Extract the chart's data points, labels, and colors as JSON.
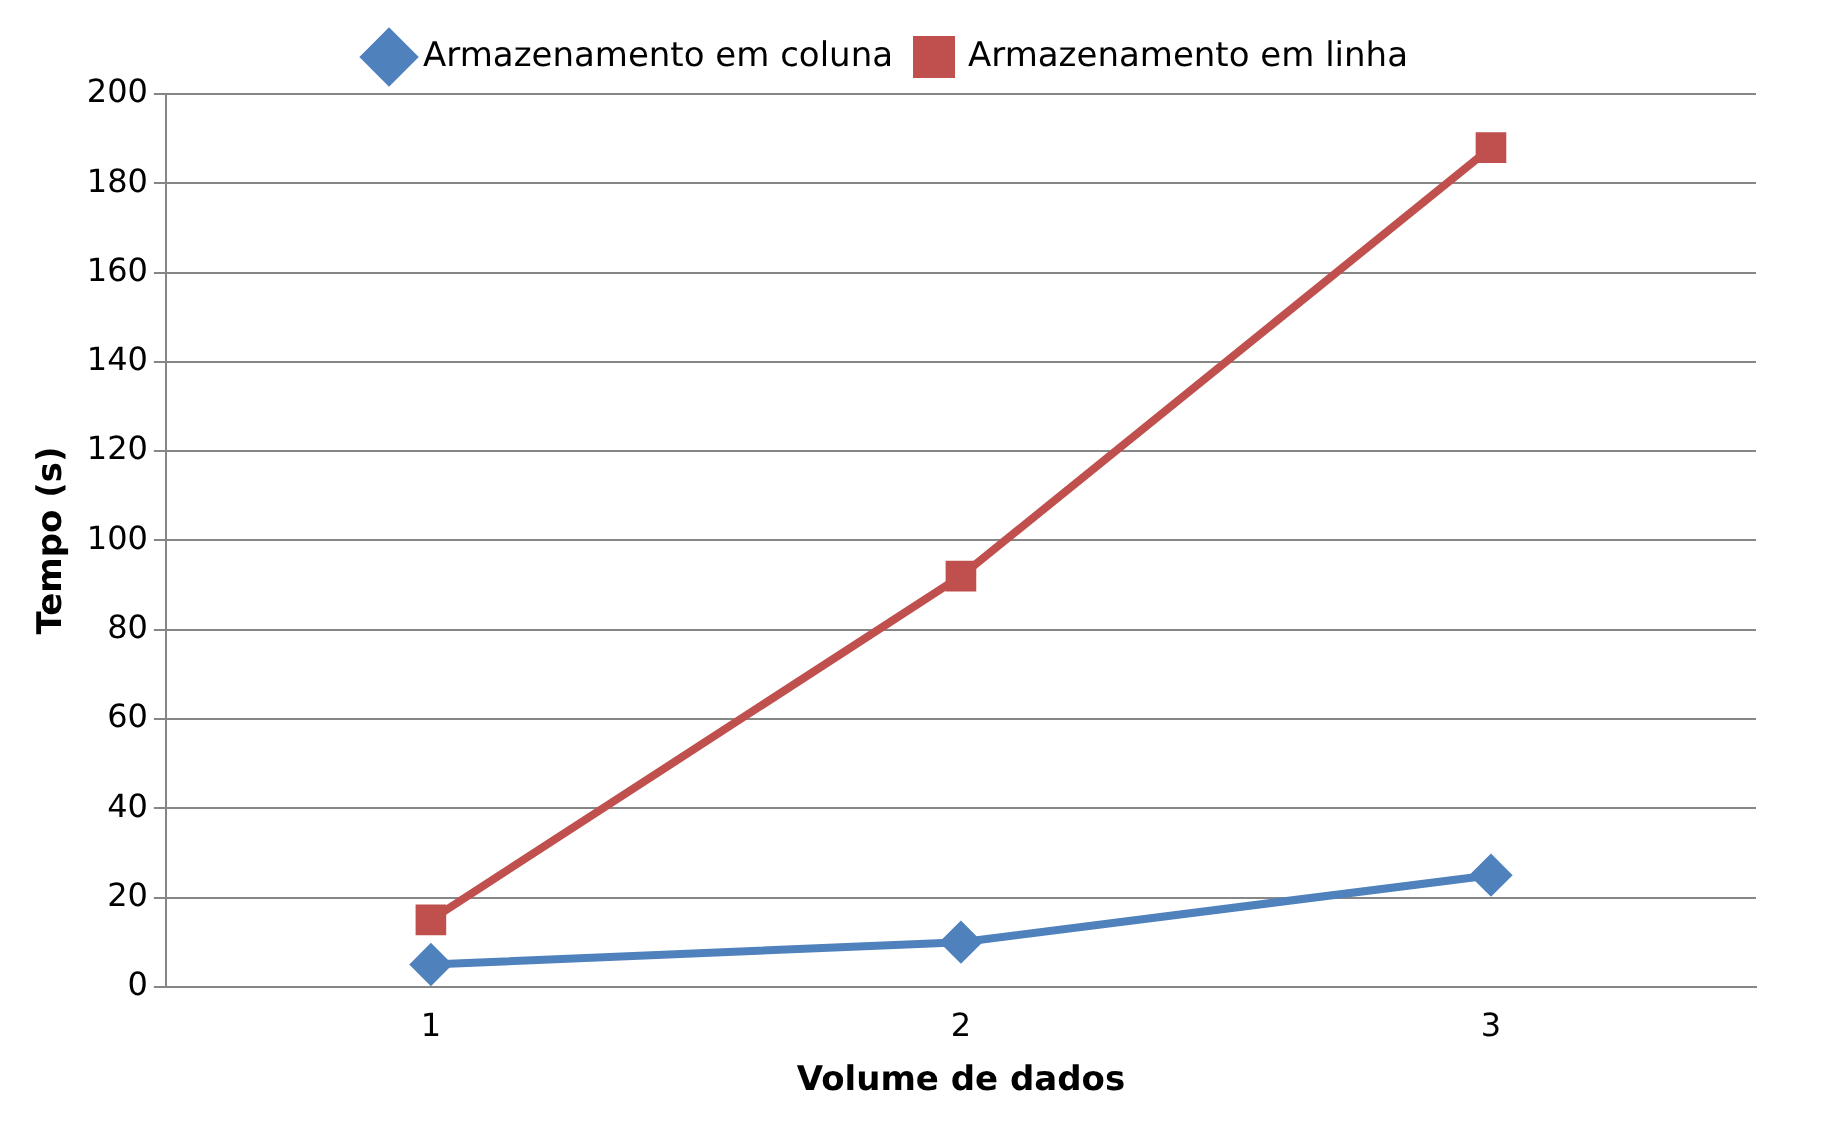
{
  "chart_data": {
    "type": "line",
    "xlabel": "Volume de dados",
    "ylabel": "Tempo (s)",
    "categories": [
      "1",
      "2",
      "3"
    ],
    "series": [
      {
        "name": "Armazenamento em coluna",
        "color": "#4f81bd",
        "marker": "diamond",
        "values": [
          5,
          10,
          25
        ]
      },
      {
        "name": "Armazenamento em linha",
        "color": "#c0504d",
        "marker": "square",
        "values": [
          15,
          92,
          188
        ]
      }
    ],
    "ylim": [
      0,
      200
    ],
    "yticks": [
      0,
      20,
      40,
      60,
      80,
      100,
      120,
      140,
      160,
      180,
      200
    ],
    "grid": "y",
    "legend": "top",
    "line_style": "solid"
  }
}
